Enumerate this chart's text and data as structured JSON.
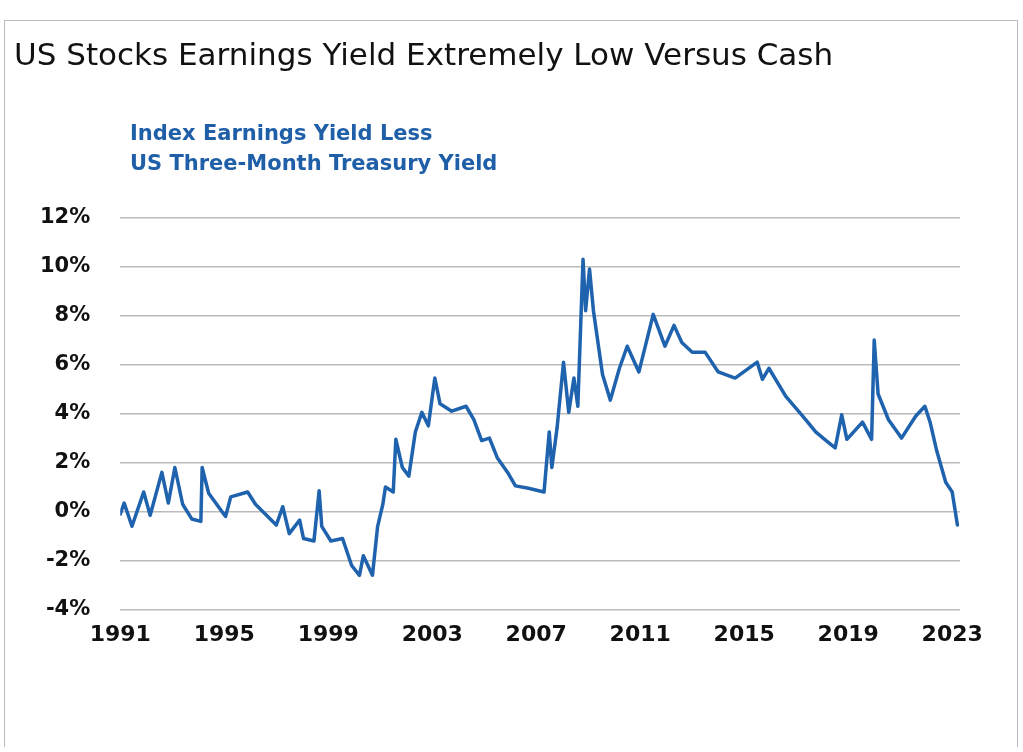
{
  "chart_data": {
    "type": "line",
    "title": "US Stocks Earnings Yield Extremely Low Versus Cash",
    "subtitle": "Index Earnings Yield Less\nUS Three-Month Treasury Yield",
    "x": [
      1991.0,
      1991.15,
      1991.45,
      1991.9,
      1992.15,
      1992.6,
      1992.85,
      1993.1,
      1993.4,
      1993.75,
      1994.1,
      1994.15,
      1994.4,
      1995.05,
      1995.25,
      1995.9,
      1996.2,
      1997.0,
      1997.25,
      1997.5,
      1997.9,
      1998.05,
      1998.45,
      1998.65,
      1998.75,
      1999.1,
      1999.55,
      1999.9,
      2000.2,
      2000.35,
      2000.7,
      2000.9,
      2001.1,
      2001.2,
      2001.5,
      2001.6,
      2001.85,
      2002.1,
      2002.35,
      2002.6,
      2002.85,
      2003.1,
      2003.3,
      2003.75,
      2004.3,
      2004.6,
      2004.9,
      2005.2,
      2005.5,
      2005.9,
      2006.2,
      2006.7,
      2007.3,
      2007.5,
      2007.6,
      2007.8,
      2008.05,
      2008.25,
      2008.45,
      2008.6,
      2008.8,
      2008.9,
      2009.05,
      2009.2,
      2009.55,
      2009.85,
      2010.2,
      2010.5,
      2010.95,
      2011.5,
      2011.95,
      2012.3,
      2012.6,
      2013.0,
      2013.5,
      2014.0,
      2014.65,
      2015.5,
      2015.7,
      2015.95,
      2016.6,
      2017.25,
      2017.75,
      2018.15,
      2018.5,
      2018.75,
      2018.95,
      2019.55,
      2019.9,
      2020.0,
      2020.15,
      2020.55,
      2021.05,
      2021.6,
      2021.95,
      2022.15,
      2022.4,
      2022.75,
      2023.0,
      2023.2
    ],
    "series": [
      {
        "color": "#1f62ad",
        "values": [
          -0.1,
          0.35,
          -0.6,
          0.8,
          -0.15,
          1.6,
          0.35,
          1.8,
          0.3,
          -0.3,
          -0.4,
          1.8,
          0.75,
          -0.2,
          0.6,
          0.8,
          0.3,
          -0.55,
          0.2,
          -0.9,
          -0.35,
          -1.1,
          -1.2,
          0.85,
          -0.6,
          -1.2,
          -1.1,
          -2.2,
          -2.6,
          -1.8,
          -2.6,
          -0.6,
          0.3,
          1.0,
          0.8,
          2.95,
          1.8,
          1.45,
          3.25,
          4.05,
          3.5,
          5.45,
          4.4,
          4.1,
          4.3,
          3.75,
          2.9,
          3.0,
          2.2,
          1.6,
          1.05,
          0.95,
          0.8,
          3.25,
          1.8,
          3.4,
          6.1,
          4.05,
          5.45,
          4.3,
          10.3,
          8.2,
          9.9,
          8.2,
          5.6,
          4.55,
          5.85,
          6.75,
          5.7,
          8.05,
          6.75,
          7.6,
          6.9,
          6.5,
          6.5,
          5.7,
          5.45,
          6.1,
          5.4,
          5.85,
          4.7,
          3.9,
          3.25,
          2.9,
          2.6,
          3.95,
          2.95,
          3.65,
          2.95,
          7.0,
          4.8,
          3.75,
          3.0,
          3.9,
          4.3,
          3.65,
          2.5,
          1.2,
          0.8,
          -0.55
        ]
      }
    ],
    "xlim": [
      1991,
      2023.3
    ],
    "xticks": [
      1991,
      1995,
      1999,
      2003,
      2007,
      2011,
      2015,
      2019,
      2023
    ],
    "ylim": [
      -4,
      12
    ],
    "yticks": [
      {
        "value": -4,
        "label": "-4%"
      },
      {
        "value": -2,
        "label": "-2%"
      },
      {
        "value": 0,
        "label": "0%"
      },
      {
        "value": 2,
        "label": "2%"
      },
      {
        "value": 4,
        "label": "4%"
      },
      {
        "value": 6,
        "label": "6%"
      },
      {
        "value": 8,
        "label": "8%"
      },
      {
        "value": 10,
        "label": "10%"
      },
      {
        "value": 12,
        "label": "12%"
      }
    ],
    "grid": "y",
    "legend": false,
    "marker": "none",
    "line_style": "solid"
  }
}
